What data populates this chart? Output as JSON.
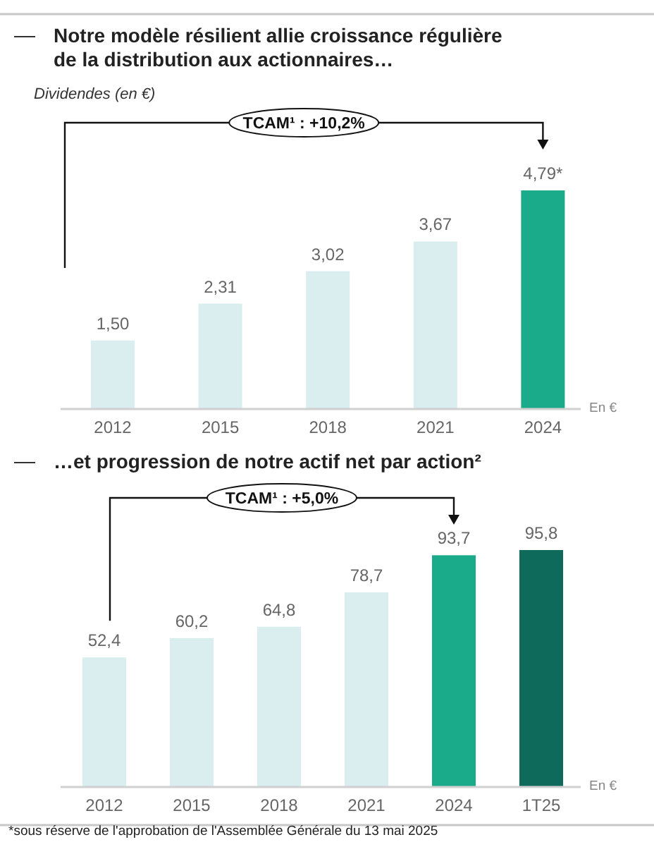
{
  "chart_data": [
    {
      "type": "bar",
      "title": "Notre modèle résilient allie croissance régulière de la distribution aux actionnaires…",
      "ylabel": "Dividendes (en €)",
      "categories": [
        "2012",
        "2015",
        "2018",
        "2021",
        "2024"
      ],
      "values": [
        1.5,
        2.31,
        3.02,
        3.67,
        4.79
      ],
      "colors": [
        "#daeef0",
        "#daeef0",
        "#daeef0",
        "#daeef0",
        "#1aab8a"
      ],
      "value_labels": [
        "1,50",
        "2,31",
        "3,02",
        "3,67",
        "4,79*"
      ],
      "annotations": [
        "TCAM¹ : +10,2%",
        "En €"
      ]
    },
    {
      "type": "bar",
      "title": "…et progression de notre actif net par action²",
      "categories": [
        "2012",
        "2015",
        "2018",
        "2021",
        "2024",
        "1T25"
      ],
      "values": [
        52.4,
        60.2,
        64.8,
        78.7,
        93.7,
        95.8
      ],
      "colors": [
        "#daeef0",
        "#daeef0",
        "#daeef0",
        "#daeef0",
        "#1aab8a",
        "#0e6b5c"
      ],
      "value_labels": [
        "52,4",
        "60,2",
        "64,8",
        "78,7",
        "93,7",
        "95,8"
      ],
      "annotations": [
        "TCAM¹ : +5,0%",
        "En €",
        "*sous réserve de l'approbation de l'Assemblée Générale du 13 mai 2025"
      ]
    }
  ]
}
